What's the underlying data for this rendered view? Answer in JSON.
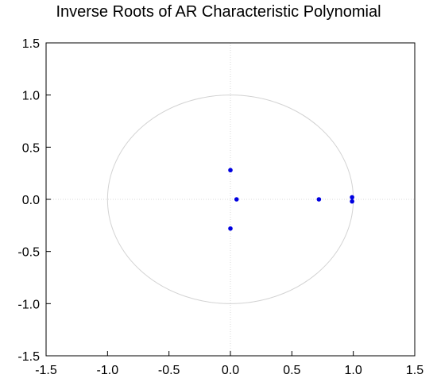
{
  "chart_data": {
    "type": "scatter",
    "title": "Inverse Roots of AR Characteristic Polynomial",
    "xlabel": "",
    "ylabel": "",
    "xlim": [
      -1.5,
      1.5
    ],
    "ylim": [
      -1.5,
      1.5
    ],
    "x_ticks": [
      "-1.5",
      "-1.0",
      "-0.5",
      "0.0",
      "0.5",
      "1.0",
      "1.5"
    ],
    "y_ticks": [
      "1.5",
      "1.0",
      "0.5",
      "0.0",
      "-0.5",
      "-1.0",
      "-1.5"
    ],
    "x_tick_values": [
      -1.5,
      -1.0,
      -0.5,
      0.0,
      0.5,
      1.0,
      1.5
    ],
    "y_tick_values": [
      1.5,
      1.0,
      0.5,
      0.0,
      -0.5,
      -1.0,
      -1.5
    ],
    "unit_circle": true,
    "zero_lines": true,
    "grid": false,
    "series": [
      {
        "color": "#0000e0",
        "points": [
          {
            "x": 0.0,
            "y": 0.28
          },
          {
            "x": 0.0,
            "y": -0.28
          },
          {
            "x": 0.05,
            "y": 0.0
          },
          {
            "x": 0.72,
            "y": 0.0
          },
          {
            "x": 0.99,
            "y": 0.02
          },
          {
            "x": 0.99,
            "y": -0.02
          }
        ]
      }
    ],
    "colors": {
      "circle": "#d3d3d3",
      "zero_line": "#d8d8d8",
      "frame": "#000000"
    }
  }
}
